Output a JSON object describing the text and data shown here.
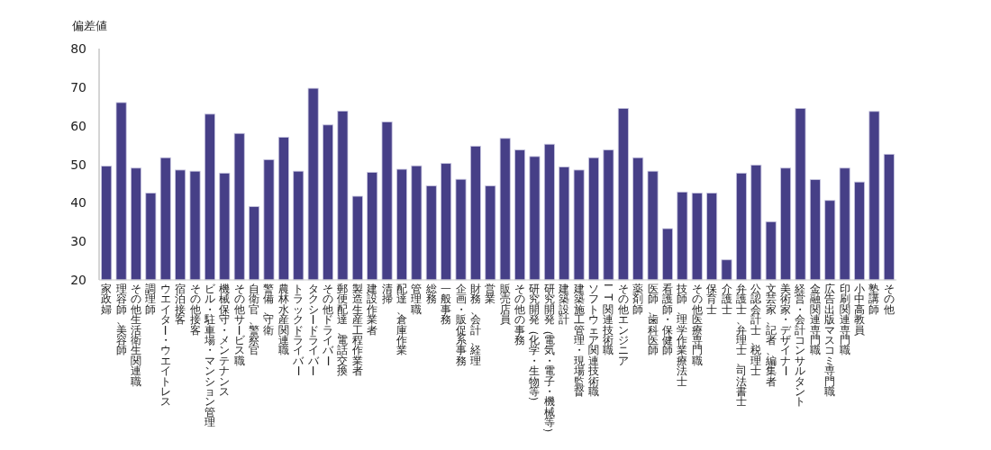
{
  "chart_data": {
    "type": "bar",
    "ylabel": "偏差値",
    "color": "#463f87",
    "ylim": [
      20,
      80
    ],
    "yticks": [
      20,
      30,
      40,
      50,
      60,
      70,
      80
    ],
    "grid": false,
    "categories": [
      "家政婦",
      "理容師、美容師",
      "その他生活衛生関連職",
      "調理師",
      "ウエイター・ウエイトレス",
      "宿泊接客",
      "その他接客",
      "ビル・駐車場・マンション管理",
      "機械保守・メンテナンス",
      "その他サービス職",
      "自衛官、警察官",
      "警備、守衛",
      "農林水産関連職",
      "トラックドライバー",
      "タクシードライバー",
      "その他ドライバー",
      "郵便配達、電話交換",
      "製造生産工程作業者",
      "建設作業者",
      "清掃",
      "配達、倉庫作業",
      "管理職",
      "総務",
      "一般事務",
      "企画・販促系事務",
      "財務、会計、経理",
      "営業",
      "販売店員",
      "その他の事務",
      "研究開発（化学・生物等）",
      "研究開発（電気・電子・機械等）",
      "建築設計",
      "建築施工管理・現場監督",
      "ソフトウェア関連技術職",
      "IT関連技術職",
      "その他エンジニア",
      "薬剤師",
      "医師、歯科医師",
      "看護師・保健師",
      "技師、理学作業療法士",
      "その他医療専門職",
      "保育士",
      "介護士",
      "弁護士、弁理士、司法書士",
      "公認会計士、税理士",
      "文芸家、記者、編集者",
      "美術家・デザイナー",
      "経営・会計コンサルタント",
      "金融関連専門職",
      "広告出版マスコミ専門職",
      "印刷関連専門職",
      "小中高教員",
      "塾講師",
      "その他"
    ],
    "values": [
      49.5,
      66,
      49,
      42.5,
      51.7,
      48.5,
      48.2,
      63,
      47.7,
      58,
      39,
      51.2,
      57,
      48.2,
      69.7,
      60.2,
      63.8,
      41.7,
      47.9,
      61,
      48.7,
      49.6,
      44.4,
      50.2,
      46.1,
      54.7,
      44.4,
      56.7,
      53.7,
      52,
      55.2,
      49.3,
      48.5,
      51.7,
      53.7,
      64.5,
      51.7,
      48.2,
      33.3,
      42.8,
      42.5,
      42.5,
      25.2,
      47.7,
      49.8,
      35.1,
      49,
      64.5,
      46,
      40.6,
      49,
      45.4,
      63.7,
      52.6
    ]
  }
}
